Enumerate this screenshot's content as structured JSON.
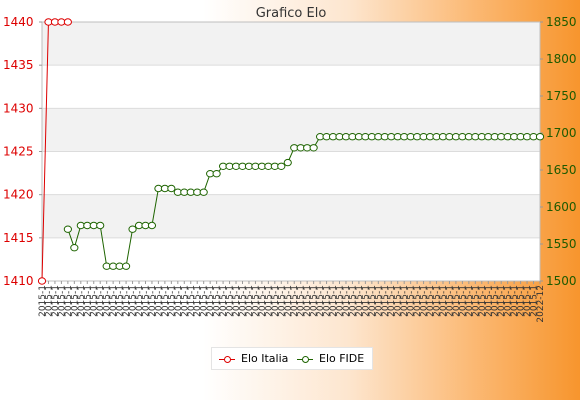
{
  "chart_data": {
    "type": "line",
    "title": "Grafico Elo",
    "left_axis": {
      "ticks": [
        "1410",
        "1415",
        "1420",
        "1425",
        "1430",
        "1435",
        "1440"
      ],
      "ylim": [
        1410,
        1440
      ],
      "color": "#dd0000"
    },
    "right_axis": {
      "ticks": [
        "1500",
        "1550",
        "1600",
        "1650",
        "1700",
        "1750",
        "1800",
        "1850"
      ],
      "ylim": [
        1500,
        1850
      ],
      "color": "#1e5a00"
    },
    "x_tick_labels": [
      "2015-1",
      "2022-12"
    ],
    "x_count": 78,
    "grid": true,
    "legend": "bottom-center",
    "series": [
      {
        "name": "Elo Italia",
        "axis": "left",
        "color": "#dd0000",
        "x": [
          0,
          1,
          2,
          3,
          4
        ],
        "values": [
          1410,
          1440,
          1440,
          1440,
          1440
        ]
      },
      {
        "name": "Elo FIDE",
        "axis": "right",
        "color": "#1e6400",
        "x": [
          4,
          5,
          6,
          7,
          8,
          9,
          10,
          11,
          12,
          13,
          14,
          15,
          16,
          17,
          18,
          19,
          20,
          21,
          22,
          23,
          24,
          25,
          26,
          27,
          28,
          29,
          30,
          31,
          32,
          33,
          34,
          35,
          36,
          37,
          38,
          39,
          40,
          41,
          42,
          43,
          44,
          45,
          46,
          47,
          48,
          49,
          50,
          51,
          52,
          53,
          54,
          55,
          56,
          57,
          58,
          59,
          60,
          61,
          62,
          63,
          64,
          65,
          66,
          67,
          68,
          69,
          70,
          71,
          72,
          73,
          74,
          75,
          76,
          77
        ],
        "values": [
          1570,
          1545,
          1575,
          1575,
          1575,
          1575,
          1520,
          1520,
          1520,
          1520,
          1570,
          1575,
          1575,
          1575,
          1625,
          1625,
          1625,
          1620,
          1620,
          1620,
          1620,
          1620,
          1645,
          1645,
          1655,
          1655,
          1655,
          1655,
          1655,
          1655,
          1655,
          1655,
          1655,
          1655,
          1660,
          1680,
          1680,
          1680,
          1680,
          1695,
          1695,
          1695,
          1695,
          1695,
          1695,
          1695,
          1695,
          1695,
          1695,
          1695,
          1695,
          1695,
          1695,
          1695,
          1695,
          1695,
          1695,
          1695,
          1695,
          1695,
          1695,
          1695,
          1695,
          1695,
          1695,
          1695,
          1695,
          1695,
          1695,
          1695,
          1695,
          1695,
          1695,
          1695
        ]
      }
    ]
  }
}
